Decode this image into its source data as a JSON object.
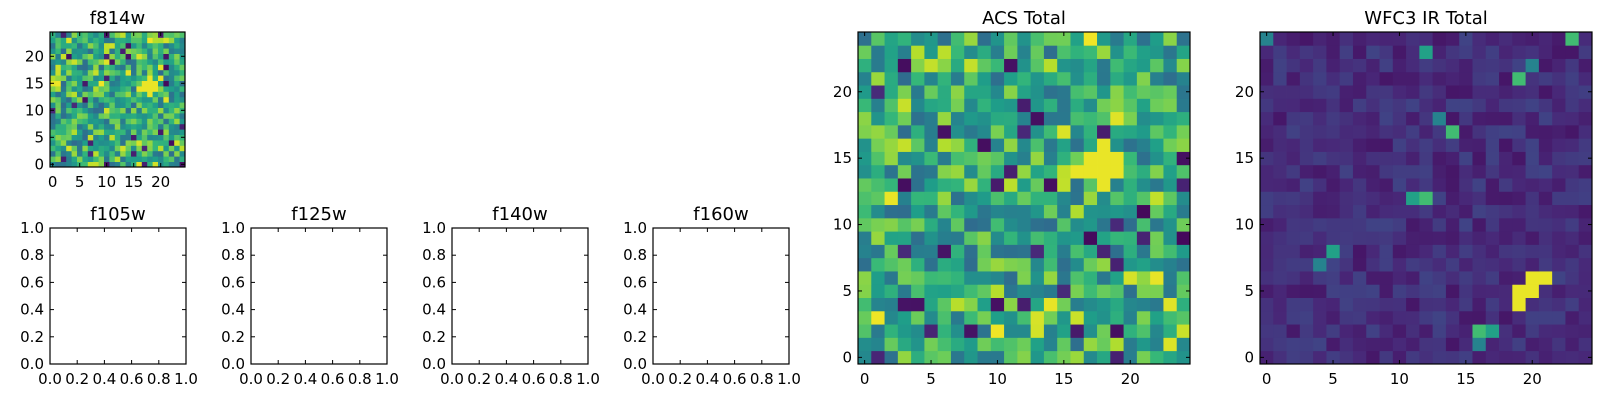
{
  "chart_data": [
    {
      "type": "heatmap",
      "title": "f814w",
      "colormap": "viridis",
      "x_ticks": [
        "0",
        "5",
        "10",
        "15",
        "20"
      ],
      "y_ticks": [
        "0",
        "5",
        "10",
        "15",
        "20"
      ],
      "xlim": [
        -0.5,
        24.5
      ],
      "ylim": [
        -0.5,
        24.5
      ],
      "grid": false,
      "seed": 11,
      "mode": "acs"
    },
    {
      "type": "heatmap",
      "title": "f105w",
      "empty": true,
      "x_ticks": [
        "0.0",
        "0.2",
        "0.4",
        "0.6",
        "0.8",
        "1.0"
      ],
      "y_ticks": [
        "0.0",
        "0.2",
        "0.4",
        "0.6",
        "0.8",
        "1.0"
      ],
      "xlim": [
        0,
        1
      ],
      "ylim": [
        0,
        1
      ]
    },
    {
      "type": "heatmap",
      "title": "f125w",
      "empty": true,
      "x_ticks": [
        "0.0",
        "0.2",
        "0.4",
        "0.6",
        "0.8",
        "1.0"
      ],
      "y_ticks": [
        "0.0",
        "0.2",
        "0.4",
        "0.6",
        "0.8",
        "1.0"
      ],
      "xlim": [
        0,
        1
      ],
      "ylim": [
        0,
        1
      ]
    },
    {
      "type": "heatmap",
      "title": "f140w",
      "empty": true,
      "x_ticks": [
        "0.0",
        "0.2",
        "0.4",
        "0.6",
        "0.8",
        "1.0"
      ],
      "y_ticks": [
        "0.0",
        "0.2",
        "0.4",
        "0.6",
        "0.8",
        "1.0"
      ],
      "xlim": [
        0,
        1
      ],
      "ylim": [
        0,
        1
      ]
    },
    {
      "type": "heatmap",
      "title": "f160w",
      "empty": true,
      "x_ticks": [
        "0.0",
        "0.2",
        "0.4",
        "0.6",
        "0.8",
        "1.0"
      ],
      "y_ticks": [
        "0.0",
        "0.2",
        "0.4",
        "0.6",
        "0.8",
        "1.0"
      ],
      "xlim": [
        0,
        1
      ],
      "ylim": [
        0,
        1
      ]
    },
    {
      "type": "heatmap",
      "title": "ACS Total",
      "colormap": "viridis",
      "x_ticks": [
        "0",
        "5",
        "10",
        "15",
        "20"
      ],
      "y_ticks": [
        "0",
        "5",
        "10",
        "15",
        "20"
      ],
      "xlim": [
        -0.5,
        24.5
      ],
      "ylim": [
        -0.5,
        24.5
      ],
      "grid": false,
      "seed": 7,
      "mode": "acs"
    },
    {
      "type": "heatmap",
      "title": "WFC3 IR Total",
      "colormap": "viridis",
      "x_ticks": [
        "0",
        "5",
        "10",
        "15",
        "20"
      ],
      "y_ticks": [
        "0",
        "5",
        "10",
        "15",
        "20"
      ],
      "xlim": [
        -0.5,
        24.5
      ],
      "ylim": [
        -0.5,
        24.5
      ],
      "grid": false,
      "seed": 3,
      "mode": "ir"
    }
  ]
}
